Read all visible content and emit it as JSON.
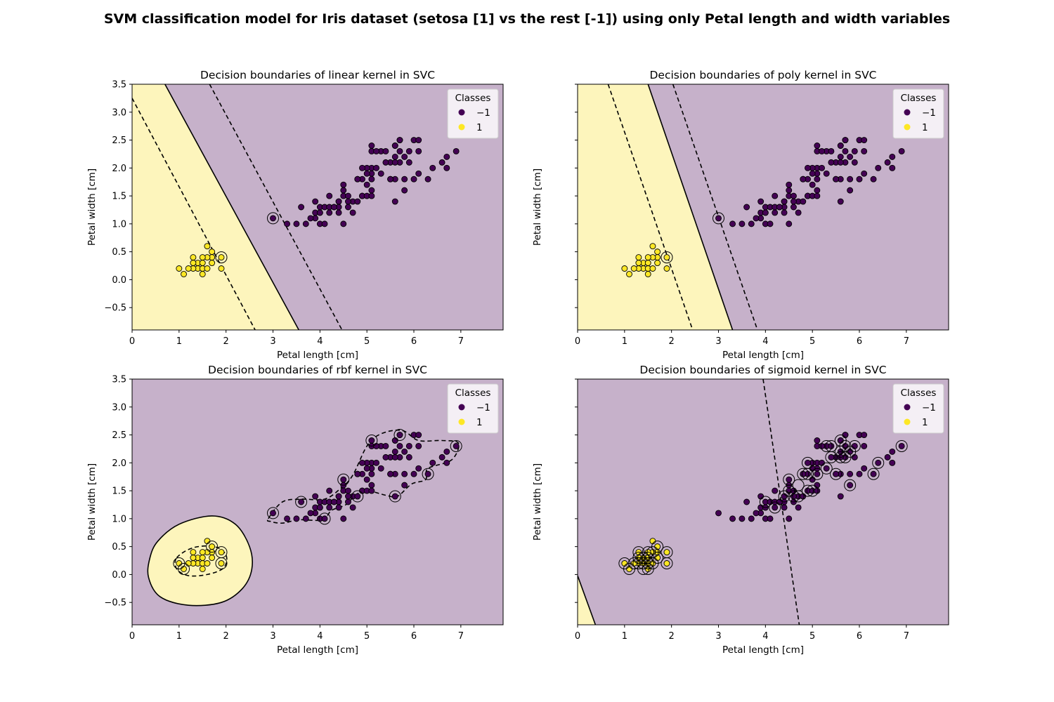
{
  "figure": {
    "suptitle": "SVM classification model for Iris dataset (setosa [1] vs the rest [-1]) using only Petal length and width variables"
  },
  "colors": {
    "class_neg": "#440154",
    "class_pos": "#fde725",
    "region_neg": "#c6b1ca",
    "region_pos": "#fdf5bc",
    "edge": "#000000"
  },
  "chart_data": [
    {
      "type": "scatter",
      "title": "Decision boundaries of linear kernel in SVC",
      "xlabel": "Petal length [cm]",
      "ylabel": "Petal width [cm]",
      "xlim": [
        0,
        7.9
      ],
      "ylim": [
        -0.9,
        3.5
      ],
      "xticks": [
        "0",
        "1",
        "2",
        "3",
        "4",
        "5",
        "6",
        "7"
      ],
      "yticks": [
        "−0.5",
        "0.0",
        "0.5",
        "1.0",
        "1.5",
        "2.0",
        "2.5",
        "3.0",
        "3.5"
      ],
      "show_ytick_labels": true,
      "legend": {
        "title": "Classes",
        "entries": [
          "−1",
          "1"
        ],
        "placement": "top-right"
      },
      "boundary": {
        "kind": "line",
        "points": [
          [
            0.7,
            3.5
          ],
          [
            3.55,
            -0.9
          ]
        ]
      },
      "margins": [
        {
          "kind": "line",
          "points": [
            [
              0.0,
              3.25
            ],
            [
              2.62,
              -0.9
            ]
          ]
        },
        {
          "kind": "line",
          "points": [
            [
              1.65,
              3.5
            ],
            [
              4.47,
              -0.9
            ]
          ]
        }
      ],
      "support_vectors": [
        [
          3.0,
          1.1
        ],
        [
          1.9,
          0.4
        ]
      ]
    },
    {
      "type": "scatter",
      "title": "Decision boundaries of poly kernel in SVC",
      "xlabel": "Petal length [cm]",
      "ylabel": "Petal width [cm]",
      "xlim": [
        0,
        7.9
      ],
      "ylim": [
        -0.9,
        3.5
      ],
      "xticks": [
        "0",
        "1",
        "2",
        "3",
        "4",
        "5",
        "6",
        "7"
      ],
      "yticks": [
        "−0.5",
        "0.0",
        "0.5",
        "1.0",
        "1.5",
        "2.0",
        "2.5",
        "3.0",
        "3.5"
      ],
      "show_ytick_labels": false,
      "legend": {
        "title": "Classes",
        "entries": [
          "−1",
          "1"
        ],
        "placement": "top-right"
      },
      "boundary": {
        "kind": "line",
        "points": [
          [
            1.5,
            3.5
          ],
          [
            3.3,
            -0.9
          ]
        ]
      },
      "margins": [
        {
          "kind": "line",
          "points": [
            [
              0.65,
              3.5
            ],
            [
              2.45,
              -0.9
            ]
          ]
        },
        {
          "kind": "line",
          "points": [
            [
              2.03,
              3.5
            ],
            [
              3.83,
              -0.9
            ]
          ]
        }
      ],
      "support_vectors": [
        [
          3.0,
          1.1
        ],
        [
          1.9,
          0.4
        ]
      ]
    },
    {
      "type": "scatter",
      "title": "Decision boundaries of rbf kernel in SVC",
      "xlabel": "Petal length [cm]",
      "ylabel": "Petal width [cm]",
      "xlim": [
        0,
        7.9
      ],
      "ylim": [
        -0.9,
        3.5
      ],
      "xticks": [
        "0",
        "1",
        "2",
        "3",
        "4",
        "5",
        "6",
        "7"
      ],
      "yticks": [
        "−0.5",
        "0.0",
        "0.5",
        "1.0",
        "1.5",
        "2.0",
        "2.5",
        "3.0",
        "3.5"
      ],
      "show_ytick_labels": true,
      "legend": {
        "title": "Classes",
        "entries": [
          "−1",
          "1"
        ],
        "placement": "top-right"
      },
      "boundary": {
        "kind": "closed",
        "points": [
          [
            0.55,
            0.6
          ],
          [
            1.0,
            0.9
          ],
          [
            1.7,
            1.05
          ],
          [
            2.2,
            0.9
          ],
          [
            2.5,
            0.5
          ],
          [
            2.55,
            0.1
          ],
          [
            2.35,
            -0.25
          ],
          [
            1.9,
            -0.5
          ],
          [
            1.2,
            -0.55
          ],
          [
            0.6,
            -0.4
          ],
          [
            0.35,
            -0.05
          ],
          [
            0.38,
            0.3
          ]
        ]
      },
      "margins": [
        {
          "kind": "closed",
          "points": [
            [
              0.95,
              0.3
            ],
            [
              1.3,
              0.48
            ],
            [
              1.75,
              0.5
            ],
            [
              2.0,
              0.35
            ],
            [
              1.95,
              0.12
            ],
            [
              1.6,
              -0.0
            ],
            [
              1.2,
              -0.02
            ],
            [
              0.95,
              0.1
            ]
          ]
        },
        {
          "kind": "closed",
          "points": [
            [
              2.9,
              1.0
            ],
            [
              3.2,
              1.3
            ],
            [
              3.6,
              1.35
            ],
            [
              4.1,
              1.35
            ],
            [
              4.45,
              1.55
            ],
            [
              4.7,
              1.78
            ],
            [
              5.0,
              2.3
            ],
            [
              5.3,
              2.52
            ],
            [
              5.75,
              2.58
            ],
            [
              6.1,
              2.4
            ],
            [
              6.6,
              2.4
            ],
            [
              6.95,
              2.35
            ],
            [
              6.8,
              2.05
            ],
            [
              6.3,
              1.9
            ],
            [
              6.25,
              1.7
            ],
            [
              5.95,
              1.62
            ],
            [
              5.65,
              1.4
            ],
            [
              5.4,
              1.42
            ],
            [
              5.0,
              1.5
            ],
            [
              4.75,
              1.42
            ],
            [
              4.55,
              1.25
            ],
            [
              4.25,
              1.15
            ],
            [
              4.05,
              0.98
            ],
            [
              3.55,
              0.98
            ],
            [
              3.2,
              0.92
            ],
            [
              2.95,
              0.95
            ]
          ]
        }
      ],
      "support_vectors": [
        [
          1.0,
          0.2
        ],
        [
          1.1,
          0.1
        ],
        [
          1.9,
          0.4
        ],
        [
          1.9,
          0.2
        ],
        [
          1.7,
          0.5
        ],
        [
          3.0,
          1.1
        ],
        [
          3.6,
          1.3
        ],
        [
          4.1,
          1.0
        ],
        [
          4.5,
          1.7
        ],
        [
          4.8,
          1.4
        ],
        [
          5.1,
          2.4
        ],
        [
          5.6,
          1.4
        ],
        [
          5.7,
          2.5
        ],
        [
          6.3,
          1.8
        ],
        [
          6.9,
          2.3
        ]
      ]
    },
    {
      "type": "scatter",
      "title": "Decision boundaries of sigmoid kernel in SVC",
      "xlabel": "Petal length [cm]",
      "ylabel": "Petal width [cm]",
      "xlim": [
        0,
        7.9
      ],
      "ylim": [
        -0.9,
        3.5
      ],
      "xticks": [
        "0",
        "1",
        "2",
        "3",
        "4",
        "5",
        "6",
        "7"
      ],
      "yticks": [
        "−0.5",
        "0.0",
        "0.5",
        "1.0",
        "1.5",
        "2.0",
        "2.5",
        "3.0",
        "3.5"
      ],
      "show_ytick_labels": false,
      "legend": {
        "title": "Classes",
        "entries": [
          "−1",
          "1"
        ],
        "placement": "top-right"
      },
      "boundary": {
        "kind": "line",
        "points": [
          [
            0.0,
            -0.02
          ],
          [
            0.38,
            -0.9
          ]
        ]
      },
      "margins": [
        {
          "kind": "line",
          "points": [
            [
              3.95,
              3.5
            ],
            [
              4.72,
              -0.9
            ]
          ]
        }
      ],
      "support_vectors": [
        [
          1.0,
          0.2
        ],
        [
          1.1,
          0.1
        ],
        [
          1.2,
          0.2
        ],
        [
          1.3,
          0.2
        ],
        [
          1.3,
          0.3
        ],
        [
          1.3,
          0.4
        ],
        [
          1.4,
          0.1
        ],
        [
          1.4,
          0.2
        ],
        [
          1.4,
          0.3
        ],
        [
          1.5,
          0.1
        ],
        [
          1.5,
          0.2
        ],
        [
          1.5,
          0.3
        ],
        [
          1.5,
          0.4
        ],
        [
          1.6,
          0.2
        ],
        [
          1.6,
          0.4
        ],
        [
          1.7,
          0.3
        ],
        [
          1.7,
          0.5
        ],
        [
          1.9,
          0.2
        ],
        [
          1.9,
          0.4
        ],
        [
          4.0,
          1.3
        ],
        [
          4.2,
          1.2
        ],
        [
          4.4,
          1.4
        ],
        [
          4.5,
          1.5
        ],
        [
          4.5,
          1.7
        ],
        [
          4.6,
          1.4
        ],
        [
          4.7,
          1.4
        ],
        [
          4.7,
          1.6
        ],
        [
          4.8,
          1.8
        ],
        [
          4.9,
          1.5
        ],
        [
          4.9,
          1.8
        ],
        [
          4.9,
          2.0
        ],
        [
          5.0,
          1.5
        ],
        [
          5.1,
          1.8
        ],
        [
          5.3,
          1.9
        ],
        [
          5.3,
          2.3
        ],
        [
          5.4,
          2.1
        ],
        [
          5.4,
          2.3
        ],
        [
          5.5,
          1.8
        ],
        [
          5.6,
          2.1
        ],
        [
          5.6,
          2.2
        ],
        [
          5.6,
          2.4
        ],
        [
          5.7,
          2.1
        ],
        [
          5.7,
          2.3
        ],
        [
          5.8,
          1.6
        ],
        [
          5.8,
          2.2
        ],
        [
          5.9,
          2.3
        ],
        [
          6.3,
          1.8
        ],
        [
          6.4,
          2.0
        ],
        [
          6.9,
          2.3
        ]
      ]
    }
  ],
  "iris_points": {
    "pos": [
      [
        1.4,
        0.2
      ],
      [
        1.3,
        0.2
      ],
      [
        1.5,
        0.2
      ],
      [
        1.7,
        0.4
      ],
      [
        1.4,
        0.3
      ],
      [
        1.5,
        0.1
      ],
      [
        1.6,
        0.2
      ],
      [
        1.1,
        0.1
      ],
      [
        1.2,
        0.2
      ],
      [
        1.3,
        0.4
      ],
      [
        1.7,
        0.3
      ],
      [
        1.0,
        0.2
      ],
      [
        1.7,
        0.5
      ],
      [
        1.9,
        0.2
      ],
      [
        1.6,
        0.4
      ],
      [
        1.5,
        0.4
      ],
      [
        1.3,
        0.3
      ],
      [
        1.9,
        0.4
      ],
      [
        1.6,
        0.6
      ],
      [
        1.5,
        0.3
      ]
    ],
    "neg": [
      [
        4.7,
        1.4
      ],
      [
        4.5,
        1.5
      ],
      [
        4.9,
        1.5
      ],
      [
        4.0,
        1.3
      ],
      [
        4.6,
        1.5
      ],
      [
        3.3,
        1.0
      ],
      [
        4.6,
        1.3
      ],
      [
        3.9,
        1.4
      ],
      [
        3.5,
        1.0
      ],
      [
        4.2,
        1.5
      ],
      [
        4.0,
        1.0
      ],
      [
        3.6,
        1.3
      ],
      [
        4.4,
        1.4
      ],
      [
        4.1,
        1.0
      ],
      [
        4.5,
        1.0
      ],
      [
        3.9,
        1.1
      ],
      [
        4.8,
        1.8
      ],
      [
        4.9,
        1.5
      ],
      [
        4.7,
        1.2
      ],
      [
        4.3,
        1.3
      ],
      [
        4.4,
        1.4
      ],
      [
        4.8,
        1.4
      ],
      [
        5.0,
        1.7
      ],
      [
        3.8,
        1.1
      ],
      [
        3.7,
        1.0
      ],
      [
        3.9,
        1.2
      ],
      [
        5.1,
        1.6
      ],
      [
        4.5,
        1.6
      ],
      [
        4.4,
        1.3
      ],
      [
        4.1,
        1.3
      ],
      [
        4.0,
        1.2
      ],
      [
        4.4,
        1.2
      ],
      [
        4.6,
        1.4
      ],
      [
        4.0,
        1.2
      ],
      [
        3.0,
        1.1
      ],
      [
        4.2,
        1.3
      ],
      [
        4.3,
        1.3
      ],
      [
        4.2,
        1.2
      ],
      [
        6.0,
        2.5
      ],
      [
        5.1,
        1.9
      ],
      [
        5.9,
        2.1
      ],
      [
        5.6,
        1.8
      ],
      [
        5.8,
        2.2
      ],
      [
        6.6,
        2.1
      ],
      [
        4.5,
        1.7
      ],
      [
        6.3,
        1.8
      ],
      [
        5.8,
        1.8
      ],
      [
        6.1,
        2.5
      ],
      [
        5.1,
        2.0
      ],
      [
        5.3,
        1.9
      ],
      [
        5.5,
        2.1
      ],
      [
        5.0,
        2.0
      ],
      [
        5.1,
        2.4
      ],
      [
        5.3,
        2.3
      ],
      [
        5.5,
        1.8
      ],
      [
        6.7,
        2.2
      ],
      [
        6.9,
        2.3
      ],
      [
        5.0,
        1.5
      ],
      [
        5.7,
        2.3
      ],
      [
        4.9,
        2.0
      ],
      [
        6.7,
        2.0
      ],
      [
        4.9,
        1.8
      ],
      [
        5.7,
        2.1
      ],
      [
        6.0,
        1.8
      ],
      [
        4.8,
        1.8
      ],
      [
        5.6,
        2.1
      ],
      [
        5.8,
        1.6
      ],
      [
        6.1,
        1.9
      ],
      [
        6.4,
        2.0
      ],
      [
        5.6,
        2.2
      ],
      [
        5.1,
        1.5
      ],
      [
        5.6,
        1.4
      ],
      [
        6.1,
        2.3
      ],
      [
        5.6,
        2.4
      ],
      [
        5.5,
        1.8
      ],
      [
        5.4,
        2.1
      ],
      [
        5.6,
        2.4
      ],
      [
        5.1,
        2.3
      ],
      [
        5.9,
        2.3
      ],
      [
        5.7,
        2.5
      ],
      [
        5.2,
        2.3
      ],
      [
        5.0,
        1.9
      ],
      [
        5.2,
        2.0
      ],
      [
        5.4,
        2.3
      ],
      [
        5.1,
        1.8
      ],
      [
        5.7,
        2.5
      ]
    ]
  }
}
